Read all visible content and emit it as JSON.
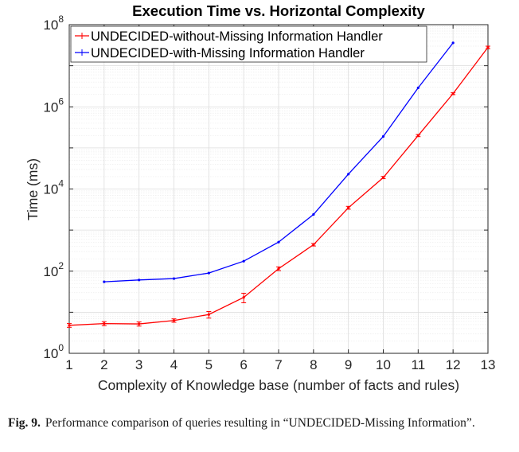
{
  "chart_data": {
    "type": "line",
    "title": "Execution Time vs. Horizontal Complexity",
    "xlabel": "Complexity of Knowledge base (number of facts and rules)",
    "ylabel": "Time (ms)",
    "y_scale": "log",
    "xlim": [
      1,
      13
    ],
    "ylim": [
      1,
      100000000
    ],
    "x_ticks": [
      1,
      2,
      3,
      4,
      5,
      6,
      7,
      8,
      9,
      10,
      11,
      12,
      13
    ],
    "y_ticks": [
      {
        "value": 1,
        "base": "10",
        "exp": "0"
      },
      {
        "value": 100,
        "base": "10",
        "exp": "2"
      },
      {
        "value": 10000,
        "base": "10",
        "exp": "4"
      },
      {
        "value": 1000000,
        "base": "10",
        "exp": "6"
      },
      {
        "value": 100000000,
        "base": "10",
        "exp": "8"
      }
    ],
    "grid": true,
    "legend_position": "top-left",
    "series": [
      {
        "name": "UNDECIDED-without-Missing Information Handler",
        "color": "#ff0000",
        "x": [
          1,
          2,
          3,
          4,
          5,
          6,
          7,
          8,
          9,
          10,
          11,
          12,
          13
        ],
        "y": [
          4.8,
          5.3,
          5.2,
          6.3,
          8.8,
          23,
          115,
          440,
          3500,
          19000,
          200000,
          2100000,
          28000000
        ],
        "error": [
          0.5,
          0.6,
          0.6,
          0.6,
          1.6,
          6,
          12,
          30,
          280,
          1200,
          12000,
          120000,
          2000000
        ]
      },
      {
        "name": "UNDECIDED-with-Missing Information Handler",
        "color": "#0000ff",
        "x": [
          2,
          3,
          4,
          5,
          6,
          7,
          8,
          9,
          10,
          11,
          12
        ],
        "y": [
          55,
          61,
          66,
          90,
          175,
          510,
          2400,
          23000,
          190000,
          2900000,
          36000000
        ],
        "error": [
          0,
          0,
          0,
          0,
          0,
          0,
          0,
          0,
          0,
          0,
          0
        ]
      }
    ]
  },
  "caption": {
    "label": "Fig. 9.",
    "text": "Performance comparison of queries resulting in “UNDECIDED-Missing Information”."
  }
}
